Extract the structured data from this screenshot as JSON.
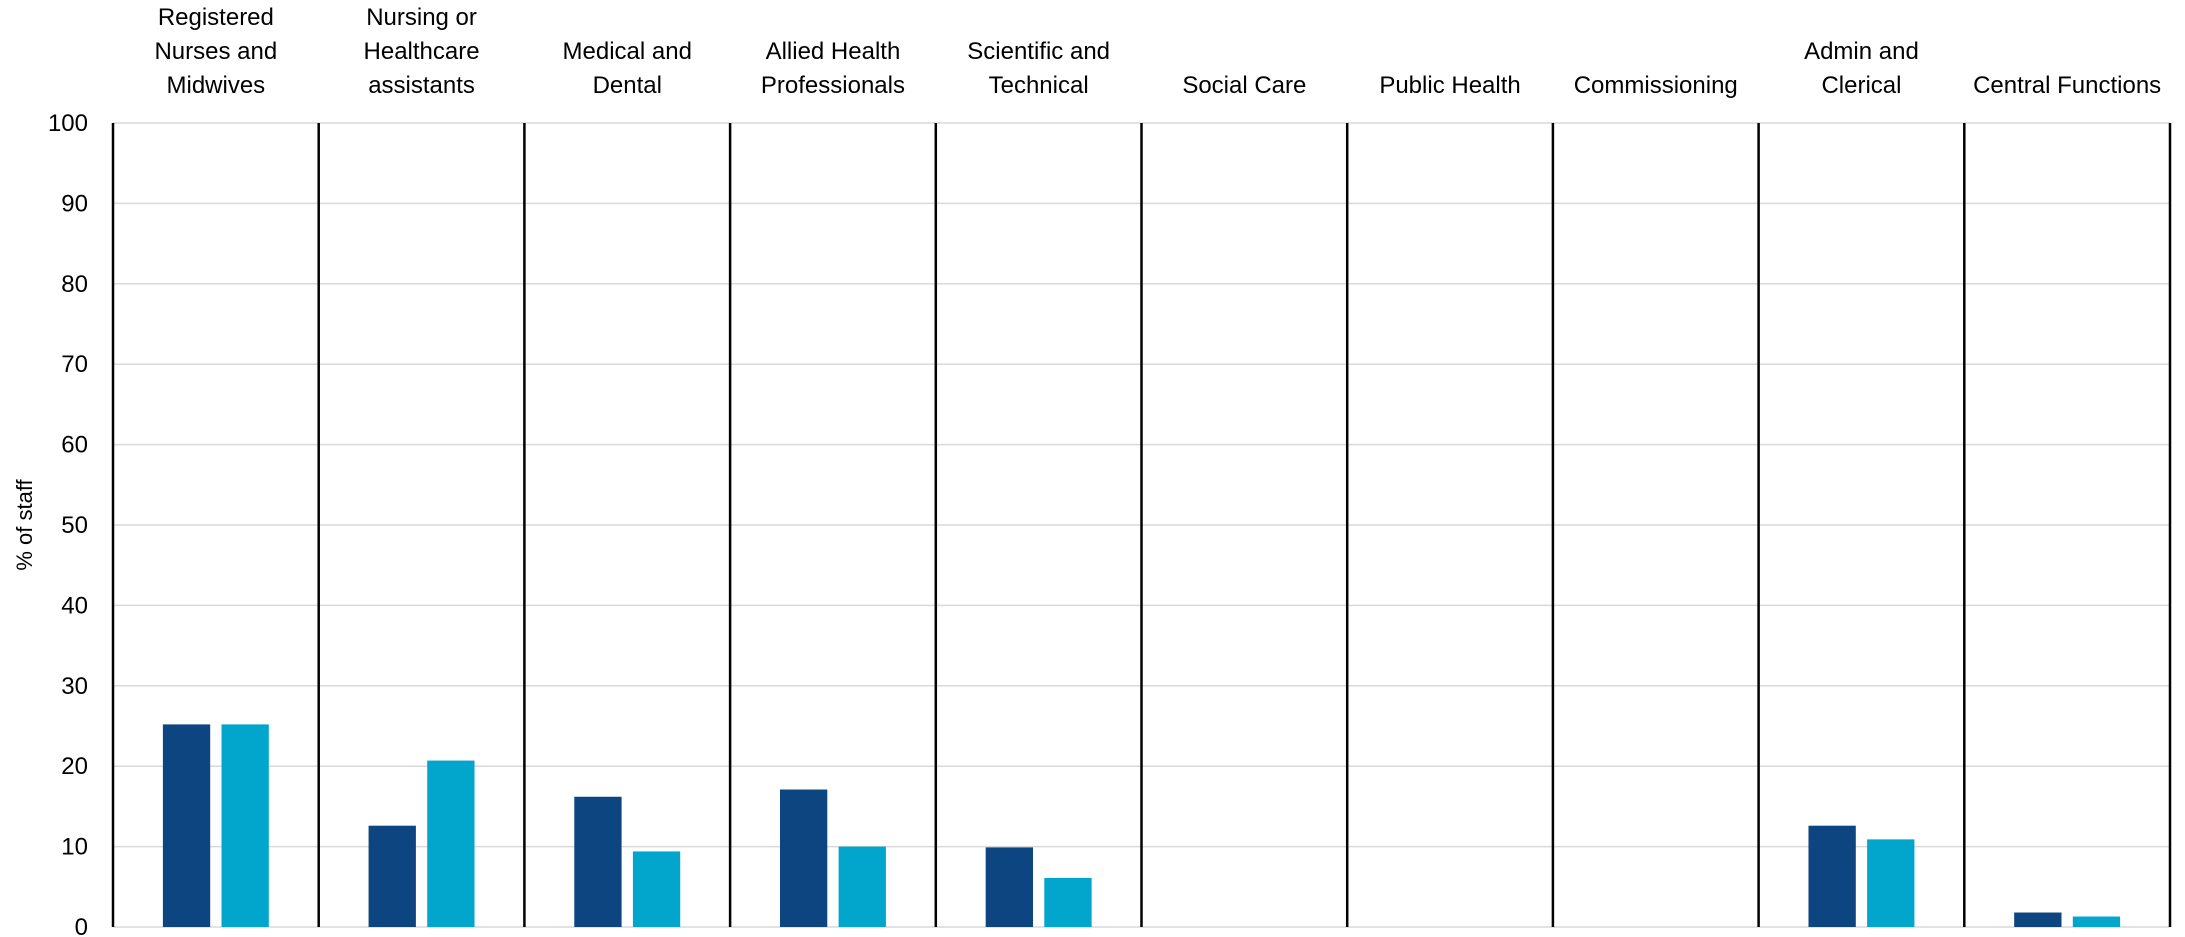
{
  "chart_data": {
    "type": "bar",
    "title": "",
    "xlabel": "",
    "ylabel": "% of staff",
    "ylim": [
      0,
      100
    ],
    "ytick_step": 10,
    "grid": true,
    "categories": [
      [
        "Registered",
        "Nurses and",
        "Midwives"
      ],
      [
        "Nursing or",
        "Healthcare",
        "assistants"
      ],
      [
        "Medical and",
        "Dental"
      ],
      [
        "Allied Health",
        "Professionals"
      ],
      [
        "Scientific and",
        "Technical"
      ],
      [
        "Social Care"
      ],
      [
        "Public Health"
      ],
      [
        "Commissioning"
      ],
      [
        "Admin and",
        "Clerical"
      ],
      [
        "Central Functions"
      ]
    ],
    "series": [
      {
        "color": "#0c4580",
        "values": [
          25.2,
          12.6,
          16.2,
          17.1,
          9.9,
          null,
          null,
          null,
          12.6,
          1.8
        ]
      },
      {
        "color": "#02a6cd",
        "values": [
          25.2,
          20.7,
          9.4,
          10.0,
          6.1,
          null,
          null,
          null,
          10.9,
          1.3
        ]
      }
    ]
  }
}
